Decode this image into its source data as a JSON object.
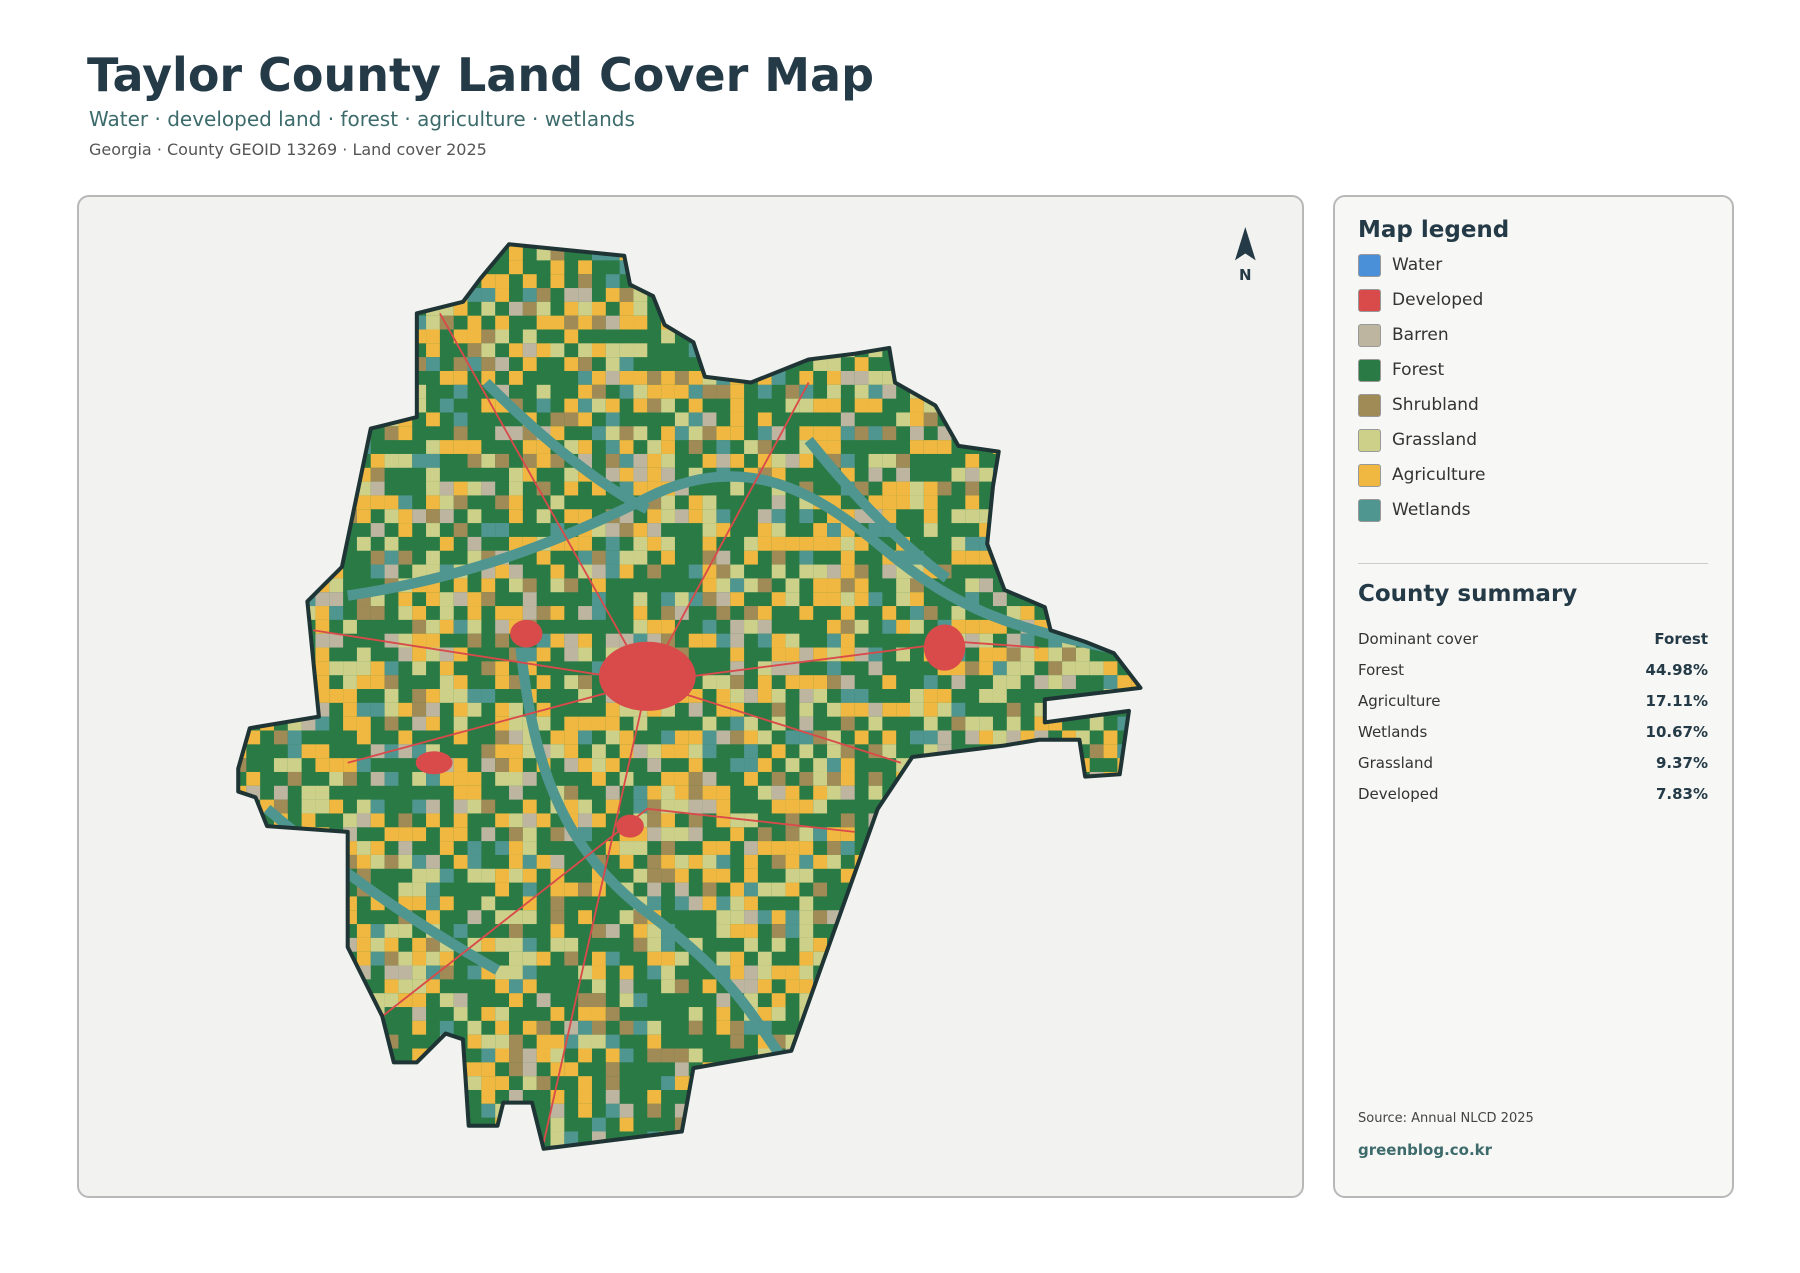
{
  "header": {
    "title": "Taylor County Land Cover Map",
    "subtitle": "Water · developed land · forest · agriculture · wetlands",
    "meta": "Georgia · County GEOID 13269 · Land cover 2025"
  },
  "map": {
    "north_label": "N"
  },
  "legend": {
    "title": "Map legend",
    "items": [
      {
        "label": "Water",
        "color": "#4a90d9"
      },
      {
        "label": "Developed",
        "color": "#d94a4a"
      },
      {
        "label": "Barren",
        "color": "#bdb5a0"
      },
      {
        "label": "Forest",
        "color": "#2a7a46"
      },
      {
        "label": "Shrubland",
        "color": "#a08a56"
      },
      {
        "label": "Grassland",
        "color": "#cdd088"
      },
      {
        "label": "Agriculture",
        "color": "#f0b840"
      },
      {
        "label": "Wetlands",
        "color": "#4f9690"
      }
    ]
  },
  "summary": {
    "title": "County summary",
    "rows": [
      [
        "Dominant cover",
        "Forest"
      ],
      [
        "Forest",
        "44.98%"
      ],
      [
        "Agriculture",
        "17.11%"
      ],
      [
        "Wetlands",
        "10.67%"
      ],
      [
        "Grassland",
        "9.37%"
      ],
      [
        "Developed",
        "7.83%"
      ]
    ]
  },
  "footer": {
    "source": "Source: Annual NLCD 2025",
    "site": "greenblog.co.kr"
  }
}
